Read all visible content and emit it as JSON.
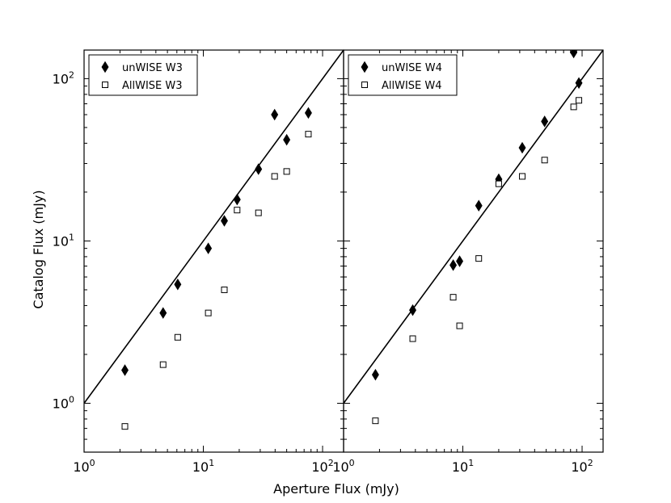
{
  "chart_data": [
    {
      "type": "scatter",
      "xlabel": "Aperture Flux (mJy)",
      "ylabel": "Catalog Flux (mJy)",
      "xscale": "log",
      "yscale": "log",
      "xlim": [
        1,
        150
      ],
      "ylim": [
        0.5,
        150
      ],
      "x_ticks": [
        {
          "base": "10",
          "exp": "0"
        },
        {
          "base": "10",
          "exp": "1"
        },
        {
          "base": "10",
          "exp": "2"
        }
      ],
      "y_ticks": [
        {
          "base": "10",
          "exp": "0"
        },
        {
          "base": "10",
          "exp": "1"
        },
        {
          "base": "10",
          "exp": "2"
        }
      ],
      "reference_line": "y = x",
      "legend_position": "upper-left",
      "series": [
        {
          "name": "unWISE W3",
          "marker": "diamond-filled",
          "points": [
            [
              2.2,
              1.6
            ],
            [
              4.6,
              3.6
            ],
            [
              6.1,
              5.4
            ],
            [
              11.0,
              9.0
            ],
            [
              15.0,
              13.3
            ],
            [
              19.2,
              18.0
            ],
            [
              29.0,
              27.7
            ],
            [
              39.6,
              60.0
            ],
            [
              50.0,
              42.0
            ],
            [
              76.0,
              61.5
            ]
          ]
        },
        {
          "name": "AllWISE W3",
          "marker": "square-open",
          "points": [
            [
              2.2,
              0.72
            ],
            [
              4.6,
              1.73
            ],
            [
              6.1,
              2.55
            ],
            [
              11.0,
              3.6
            ],
            [
              15.0,
              5.0
            ],
            [
              19.2,
              15.5
            ],
            [
              29.0,
              14.9
            ],
            [
              39.6,
              25.0
            ],
            [
              50.0,
              26.8
            ],
            [
              76.0,
              45.5
            ]
          ]
        }
      ]
    },
    {
      "type": "scatter",
      "xscale": "log",
      "yscale": "log",
      "xlim": [
        1,
        150
      ],
      "ylim": [
        0.5,
        150
      ],
      "x_ticks": [
        {
          "base": "10",
          "exp": "0"
        },
        {
          "base": "10",
          "exp": "1"
        },
        {
          "base": "10",
          "exp": "2"
        }
      ],
      "reference_line": "y = x",
      "legend_position": "upper-left",
      "series": [
        {
          "name": "unWISE W4",
          "marker": "diamond-filled",
          "points": [
            [
              1.85,
              1.5
            ],
            [
              3.8,
              3.75
            ],
            [
              8.3,
              7.1
            ],
            [
              9.4,
              7.5
            ],
            [
              13.6,
              16.5
            ],
            [
              20.0,
              24.0
            ],
            [
              31.5,
              37.5
            ],
            [
              48.5,
              54.5
            ],
            [
              85.0,
              145.0
            ],
            [
              94.0,
              94.0
            ]
          ]
        },
        {
          "name": "AllWISE W4",
          "marker": "square-open",
          "points": [
            [
              1.85,
              0.78
            ],
            [
              3.8,
              2.5
            ],
            [
              8.3,
              4.5
            ],
            [
              9.4,
              3.0
            ],
            [
              13.6,
              7.8
            ],
            [
              20.0,
              22.5
            ],
            [
              31.5,
              25.0
            ],
            [
              48.5,
              31.5
            ],
            [
              85.0,
              67.0
            ],
            [
              94.0,
              73.5
            ]
          ]
        }
      ]
    }
  ]
}
